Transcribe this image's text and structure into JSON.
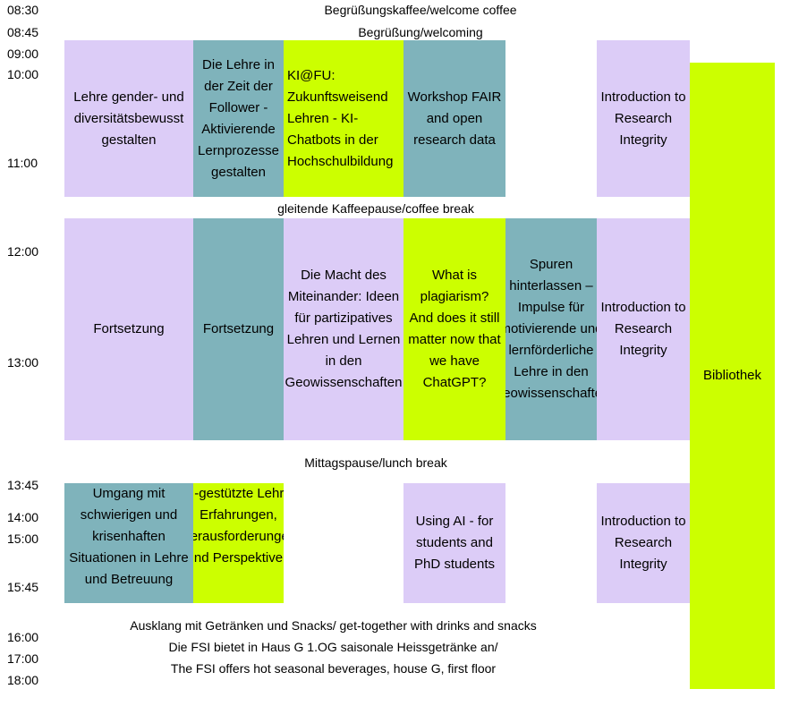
{
  "times": [
    "08:30",
    "08:45",
    "09:00",
    "10:00",
    "11:00",
    "12:00",
    "13:00",
    "13:45",
    "14:00",
    "15:00",
    "15:45",
    "16:00",
    "17:00",
    "18:00"
  ],
  "banners": {
    "coffee": "Begrüßungskaffee/welcome coffee",
    "welcoming": "Begrüßung/welcoming",
    "coffee_break": "gleitende Kaffeepause/coffee break",
    "lunch_break": "Mittagspause/lunch break",
    "closing_line1": "Ausklang mit Getränken und Snacks/ get-together with drinks and snacks",
    "closing_line2": "Die FSI bietet in Haus G 1.OG saisonale Heissgetränke an/",
    "closing_line3": "The FSI offers hot seasonal beverages, house G, first floor"
  },
  "sessions": {
    "morning": [
      {
        "text": "Lehre gender- und diversitätsbewusst gestalten",
        "color": "#dcccf7"
      },
      {
        "text": "Die Lehre in der Zeit der Follower - Aktivierende Lernprozesse gestalten",
        "color": "#7fb3bb"
      },
      {
        "text": "KI@FU: Zukunftsweisend Lehren - KI-Chatbots in der Hochschulbildung",
        "color": "#ccff00"
      },
      {
        "text": "Workshop FAIR and open research data",
        "color": "#7fb3bb"
      },
      {
        "text": "Introduction to Research Integrity",
        "color": "#dcccf7"
      }
    ],
    "midday": [
      {
        "text": "Fortsetzung",
        "color": "#dcccf7"
      },
      {
        "text": "Fortsetzung",
        "color": "#7fb3bb"
      },
      {
        "text": "Die Macht des Miteinander: Ideen für partizipatives Lehren und Lernen in den Geowissenschaften",
        "color": "#dcccf7"
      },
      {
        "text": "What is plagiarism? And does it still matter now that we have ChatGPT?",
        "color": "#ccff00"
      },
      {
        "text": "Spuren hinterlassen – Impulse für motivierende und lernförderliche Lehre in den Geowissenschaften",
        "color": "#7fb3bb"
      },
      {
        "text": "Introduction to Research Integrity",
        "color": "#dcccf7"
      }
    ],
    "afternoon": [
      {
        "text": "Umgang mit schwierigen und krisenhaften Situationen in Lehre und Betreuung",
        "color": "#7fb3bb"
      },
      {
        "text": "KI-gestützte Lehre: Erfahrungen, Herausforderungen und Perspektiven",
        "color": "#ccff00"
      },
      {
        "text": "Using AI - for students and PhD students",
        "color": "#dcccf7"
      },
      {
        "text": "Introduction to Research Integrity",
        "color": "#dcccf7"
      }
    ],
    "library": {
      "text": "Bibliothek",
      "color": "#ccff00"
    }
  }
}
